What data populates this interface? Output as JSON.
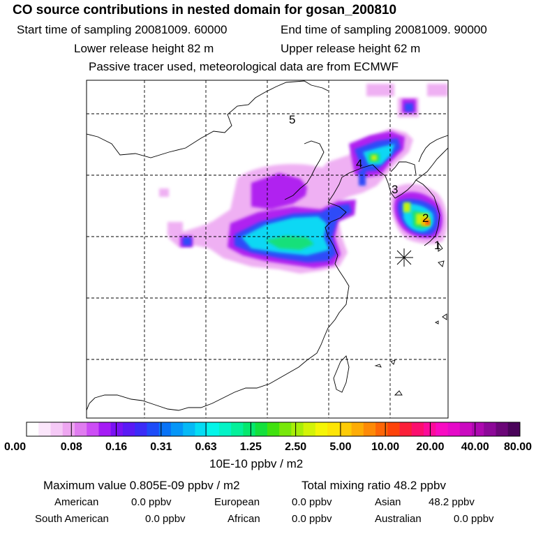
{
  "header": {
    "title": "CO  source contributions in nested domain for gosan_200810",
    "start_time": "Start time of sampling 20081009. 60000",
    "end_time": "End time of sampling 20081009. 90000",
    "lower_height": "Lower release height   82 m",
    "upper_height": "Upper release height   62 m",
    "note": "Passive tracer used, meteorological data are from ECMWF"
  },
  "map": {
    "region_labels": [
      "1",
      "2",
      "3",
      "4",
      "5"
    ],
    "receptor_icon": "asterisk-icon"
  },
  "colorbar": {
    "tick_labels": [
      "0.00",
      "0.08",
      "0.16",
      "0.31",
      "0.63",
      "1.25",
      "2.50",
      "5.00",
      "10.00",
      "20.00",
      "40.00",
      "80.00"
    ],
    "unit": "10E-10 ppbv / m2",
    "colors": [
      "#ffffff",
      "#fbe6fb",
      "#f5c9f6",
      "#eea6f1",
      "#e07cf0",
      "#cc4df5",
      "#a51cf5",
      "#7a12f4",
      "#5a1af5",
      "#3b2cf7",
      "#1e4cf8",
      "#0873f7",
      "#0596f8",
      "#06b9f6",
      "#05dcf4",
      "#04f5e9",
      "#04f3c6",
      "#04f09a",
      "#05e86e",
      "#14e03c",
      "#40e10f",
      "#78e70a",
      "#a8ee08",
      "#d3f307",
      "#f5f506",
      "#fde506",
      "#fdcb06",
      "#fdac06",
      "#fd8a07",
      "#fd6607",
      "#fd4309",
      "#fb1f3a",
      "#fb0f6e",
      "#fb0b9a",
      "#f80bc2",
      "#e50ac8",
      "#ca0ac0",
      "#ad08b0",
      "#8c0898",
      "#6b0678",
      "#4a045a"
    ]
  },
  "summary": {
    "max_value": "Maximum value  0.805E-09 ppbv / m2",
    "total_mixing": "Total mixing ratio       48.2 ppbv",
    "regions": [
      {
        "name": "American",
        "value": "0.0 ppbv"
      },
      {
        "name": "European",
        "value": "0.0 ppbv"
      },
      {
        "name": "Asian",
        "value": "48.2 ppbv"
      },
      {
        "name": "South American",
        "value": "0.0 ppbv"
      },
      {
        "name": "African",
        "value": "0.0 ppbv"
      },
      {
        "name": "Australian",
        "value": "0.0 ppbv"
      }
    ]
  }
}
